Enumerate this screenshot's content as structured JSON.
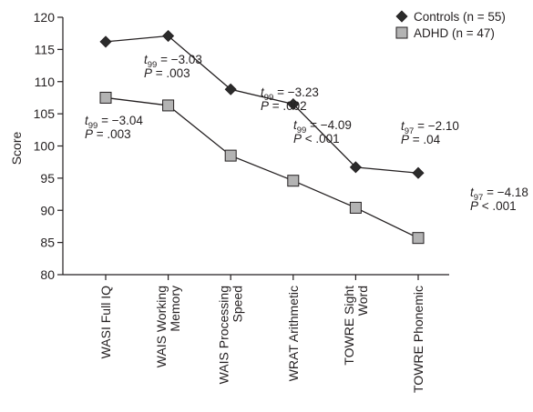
{
  "chart_data": {
    "type": "line",
    "title": "",
    "xlabel": "",
    "ylabel": "Score",
    "ylim": [
      80,
      120
    ],
    "yticks": [
      "80",
      "85",
      "90",
      "95",
      "100",
      "105",
      "110",
      "115",
      "120"
    ],
    "grid": false,
    "legend_position": "top-right",
    "categories": [
      [
        "WASI Full IQ"
      ],
      [
        "WAIS Working",
        "Memory"
      ],
      [
        "WAIS Processing",
        "Speed"
      ],
      [
        "WRAT Arithmetic"
      ],
      [
        "TOWRE Sight",
        "Word"
      ],
      [
        "TOWRE Phonemic"
      ]
    ],
    "series": [
      {
        "name": "Controls (n = 55)",
        "marker": "diamond",
        "color": "#2b2b2b",
        "values": [
          116.2,
          117.1,
          108.8,
          106.5,
          96.7,
          95.8
        ]
      },
      {
        "name": "ADHD (n = 47)",
        "marker": "square",
        "color": "#b3b3b3",
        "values": [
          107.5,
          106.3,
          98.5,
          94.6,
          90.4,
          85.7
        ]
      }
    ],
    "annotations": [
      {
        "t": "t",
        "sub": "99",
        "stat": " = −3.04",
        "p": "P",
        "pv": " = .003"
      },
      {
        "t": "t",
        "sub": "99",
        "stat": " = −3.03",
        "p": "P",
        "pv": " = .003"
      },
      {
        "t": "t",
        "sub": "99",
        "stat": " = −3.23",
        "p": "P",
        "pv": " = .002"
      },
      {
        "t": "t",
        "sub": "99",
        "stat": " = −4.09",
        "p": "P",
        "pv": " < .001"
      },
      {
        "t": "t",
        "sub": "97",
        "stat": " = −2.10",
        "p": "P",
        "pv": " = .04"
      },
      {
        "t": "t",
        "sub": "97",
        "stat": " = −4.18",
        "p": "P",
        "pv": " < .001"
      }
    ]
  }
}
